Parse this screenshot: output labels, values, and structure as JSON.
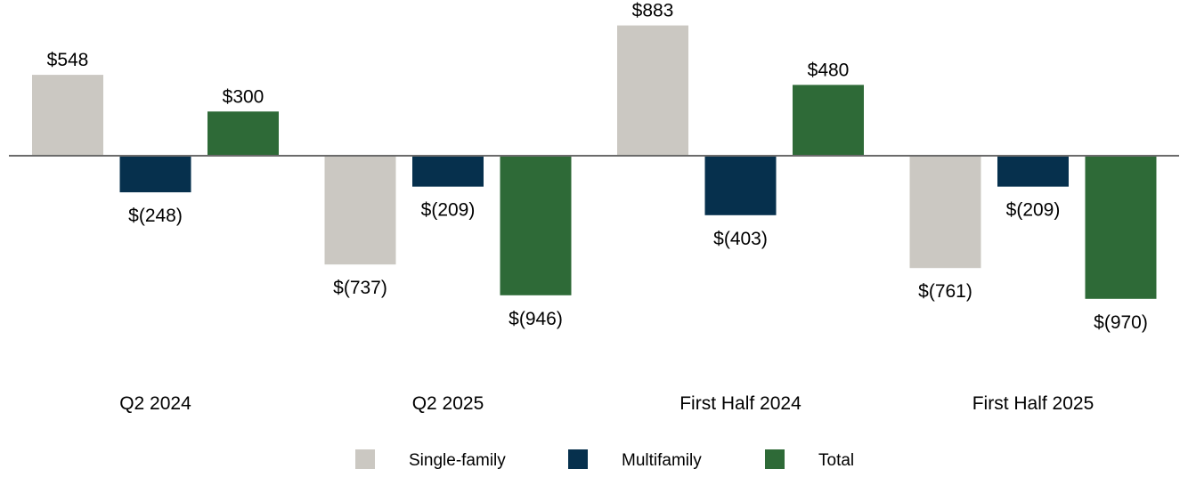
{
  "chart_data": {
    "type": "bar",
    "title": "",
    "xlabel": "",
    "ylabel": "",
    "ylim": [
      -1000,
      900
    ],
    "grid": false,
    "legend_position": "bottom",
    "categories": [
      "Q2 2024",
      "Q2 2025",
      "First Half 2024",
      "First Half 2025"
    ],
    "series": [
      {
        "name": "Single-family",
        "color": "#cbc8c2",
        "values": [
          548,
          -737,
          883,
          -761
        ],
        "labels": [
          "$548",
          "$(737)",
          "$883",
          "$(761)"
        ]
      },
      {
        "name": "Multifamily",
        "color": "#06304d",
        "values": [
          -248,
          -209,
          -403,
          -209
        ],
        "labels": [
          "$(248)",
          "$(209)",
          "$(403)",
          "$(209)"
        ]
      },
      {
        "name": "Total",
        "color": "#2e6a37",
        "values": [
          300,
          -946,
          480,
          -970
        ],
        "labels": [
          "$300",
          "$(946)",
          "$480",
          "$(970)"
        ]
      }
    ]
  }
}
